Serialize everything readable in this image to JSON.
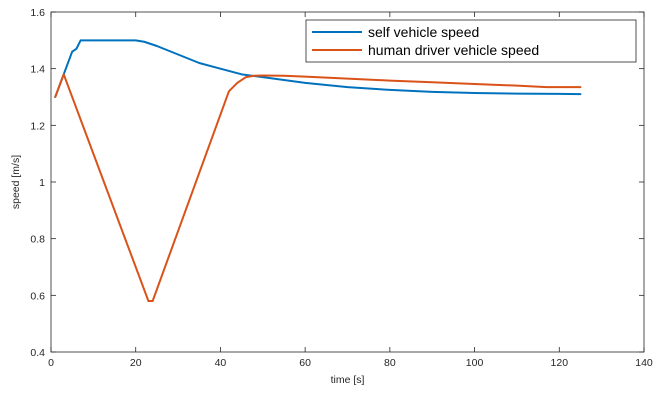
{
  "chart_data": {
    "type": "line",
    "title": "",
    "xlabel": "time [s]",
    "ylabel": "speed [m/s]",
    "xlim": [
      0,
      140
    ],
    "ylim": [
      0.4,
      1.6
    ],
    "xticks": [
      0,
      20,
      40,
      60,
      80,
      100,
      120,
      140
    ],
    "yticks": [
      0.4,
      0.6,
      0.8,
      1,
      1.2,
      1.4,
      1.6
    ],
    "xtick_labels": [
      "0",
      "20",
      "40",
      "60",
      "80",
      "100",
      "120",
      "140"
    ],
    "ytick_labels": [
      "0.4",
      "0.6",
      "0.8",
      "1",
      "1.2",
      "1.4",
      "1.6"
    ],
    "grid": false,
    "legend_position": "top-right",
    "series": [
      {
        "name": "self vehicle speed",
        "color": "#0072BD",
        "x": [
          1,
          3,
          5,
          6,
          7,
          10,
          15,
          20,
          22,
          25,
          30,
          35,
          40,
          45,
          50,
          60,
          70,
          80,
          90,
          100,
          110,
          120,
          125
        ],
        "y": [
          1.3,
          1.38,
          1.46,
          1.47,
          1.5,
          1.5,
          1.5,
          1.5,
          1.495,
          1.48,
          1.45,
          1.42,
          1.4,
          1.38,
          1.37,
          1.35,
          1.335,
          1.325,
          1.318,
          1.314,
          1.312,
          1.311,
          1.31
        ]
      },
      {
        "name": "human driver vehicle speed",
        "color": "#D95319",
        "x": [
          1,
          3,
          23,
          24,
          42,
          44,
          46,
          48,
          50,
          55,
          60,
          70,
          80,
          90,
          100,
          110,
          117,
          120,
          125
        ],
        "y": [
          1.3,
          1.38,
          0.58,
          0.58,
          1.32,
          1.35,
          1.37,
          1.375,
          1.376,
          1.375,
          1.372,
          1.365,
          1.358,
          1.352,
          1.346,
          1.34,
          1.335,
          1.335,
          1.335
        ]
      }
    ]
  }
}
